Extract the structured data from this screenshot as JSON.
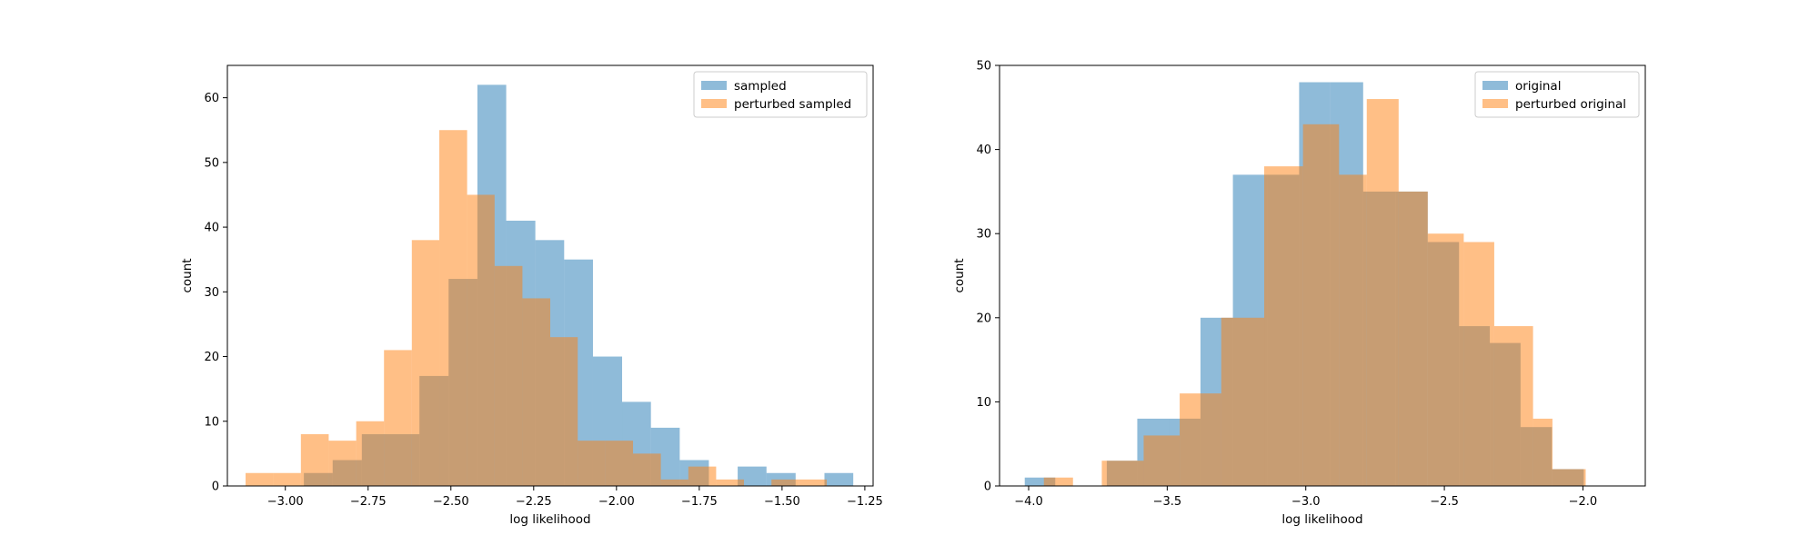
{
  "chart_data": [
    {
      "type": "histogram",
      "xlabel": "log likelihood",
      "ylabel": "count",
      "xlim": [
        -3.175,
        -1.225
      ],
      "ylim": [
        0,
        65
      ],
      "xticks": [
        -3.0,
        -2.75,
        -2.5,
        -2.25,
        -2.0,
        -1.75,
        -1.5,
        -1.25
      ],
      "xtick_labels": [
        "−3.00",
        "−2.75",
        "−2.50",
        "−2.25",
        "−2.00",
        "−1.75",
        "−1.50",
        "−1.25"
      ],
      "yticks": [
        0,
        10,
        20,
        30,
        40,
        50,
        60
      ],
      "ytick_labels": [
        "0",
        "10",
        "20",
        "30",
        "40",
        "50",
        "60"
      ],
      "legend_position": "top-right",
      "series": [
        {
          "name": "sampled",
          "color": "#1f77b4",
          "bin_edges": [
            -2.944,
            -2.857,
            -2.769,
            -2.682,
            -2.595,
            -2.507,
            -2.42,
            -2.333,
            -2.245,
            -2.158,
            -2.071,
            -1.983,
            -1.896,
            -1.809,
            -1.721,
            -1.634,
            -1.547,
            -1.459,
            -1.372,
            -1.285
          ],
          "counts": [
            2,
            4,
            8,
            8,
            17,
            32,
            62,
            41,
            38,
            35,
            20,
            13,
            9,
            4,
            0,
            3,
            2,
            0,
            2
          ]
        },
        {
          "name": "perturbed sampled",
          "color": "#ff7f0e",
          "bin_edges": [
            -3.12,
            -3.036,
            -2.953,
            -2.869,
            -2.786,
            -2.702,
            -2.618,
            -2.535,
            -2.451,
            -2.368,
            -2.284,
            -2.2,
            -2.117,
            -2.033,
            -1.95,
            -1.866,
            -1.783,
            -1.699,
            -1.615,
            -1.532,
            -1.448,
            -1.365
          ],
          "counts": [
            2,
            2,
            8,
            7,
            10,
            21,
            38,
            55,
            45,
            34,
            29,
            23,
            7,
            7,
            5,
            1,
            3,
            1,
            0,
            1,
            1
          ]
        }
      ]
    },
    {
      "type": "histogram",
      "xlabel": "log likelihood",
      "ylabel": "count",
      "xlim": [
        -4.105,
        -1.775
      ],
      "ylim": [
        0,
        50
      ],
      "xticks": [
        -4.0,
        -3.5,
        -3.0,
        -2.5,
        -2.0
      ],
      "xtick_labels": [
        "−4.0",
        "−3.5",
        "−3.0",
        "−2.5",
        "−2.0"
      ],
      "yticks": [
        0,
        10,
        20,
        30,
        40,
        50
      ],
      "ytick_labels": [
        "0",
        "10",
        "20",
        "30",
        "40",
        "50"
      ],
      "legend_position": "top-right",
      "series": [
        {
          "name": "original",
          "color": "#1f77b4",
          "bin_edges": [
            -4.014,
            -3.904,
            -3.829,
            -3.718,
            -3.608,
            -3.493,
            -3.38,
            -3.263,
            -3.14,
            -3.024,
            -2.911,
            -2.793,
            -2.675,
            -2.56,
            -2.447,
            -2.336,
            -2.225,
            -2.112,
            -1.997,
            -1.87
          ],
          "counts": [
            1,
            0,
            0,
            3,
            8,
            8,
            20,
            37,
            37,
            48,
            48,
            35,
            35,
            29,
            19,
            17,
            7,
            2,
            0
          ]
        },
        {
          "name": "perturbed original",
          "color": "#ff7f0e",
          "bin_edges": [
            -3.945,
            -3.84,
            -3.736,
            -3.585,
            -3.455,
            -3.305,
            -3.15,
            -3.01,
            -2.88,
            -2.78,
            -2.665,
            -2.56,
            -2.43,
            -2.32,
            -2.18,
            -2.11,
            -1.99
          ],
          "counts": [
            1,
            0,
            3,
            6,
            11,
            20,
            38,
            43,
            37,
            46,
            35,
            30,
            29,
            19,
            8,
            2
          ]
        }
      ]
    }
  ]
}
